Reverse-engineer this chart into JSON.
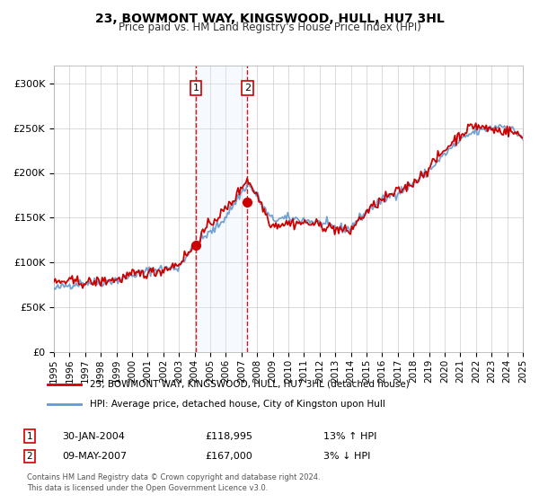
{
  "title": "23, BOWMONT WAY, KINGSWOOD, HULL, HU7 3HL",
  "subtitle": "Price paid vs. HM Land Registry's House Price Index (HPI)",
  "legend_line1": "23, BOWMONT WAY, KINGSWOOD, HULL, HU7 3HL (detached house)",
  "legend_line2": "HPI: Average price, detached house, City of Kingston upon Hull",
  "sale1_date": "30-JAN-2004",
  "sale1_price": 118995,
  "sale1_price_str": "£118,995",
  "sale1_hpi": "13% ↑ HPI",
  "sale1_year": 2004.08,
  "sale2_date": "09-MAY-2007",
  "sale2_price": 167000,
  "sale2_price_str": "£167,000",
  "sale2_hpi": "3% ↓ HPI",
  "sale2_year": 2007.37,
  "footnote1": "Contains HM Land Registry data © Crown copyright and database right 2024.",
  "footnote2": "This data is licensed under the Open Government Licence v3.0.",
  "red_color": "#cc0000",
  "blue_color": "#6699cc",
  "shade_color": "#ddeeff",
  "ylim_max": 320000,
  "ylim_min": 0
}
